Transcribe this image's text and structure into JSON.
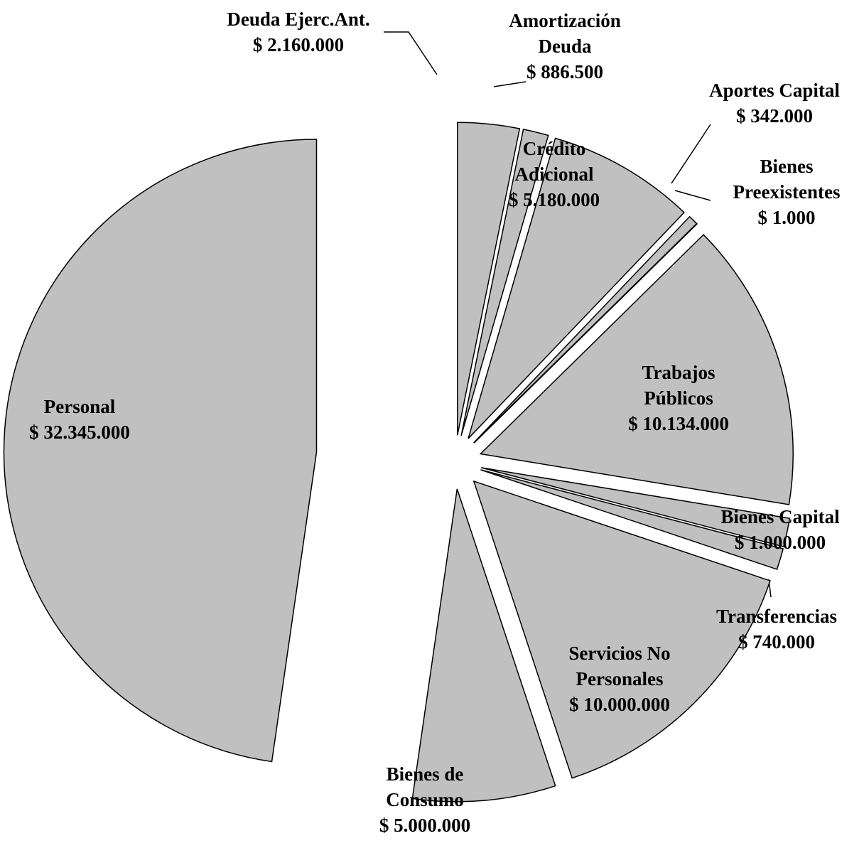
{
  "chart_data": {
    "type": "pie",
    "categories": [
      "Deuda Ejerc.Ant.",
      "Amortización Deuda",
      "Crédito Adicional",
      "Aportes Capital",
      "Bienes Preexistentes",
      "Trabajos Públicos",
      "Bienes Capital",
      "Transferencias",
      "Servicios No Personales",
      "Bienes de Consumo",
      "Personal"
    ],
    "values": [
      2160000,
      886500,
      5180000,
      342000,
      1000,
      10134000,
      1000000,
      740000,
      10000000,
      5000000,
      32345000
    ],
    "value_labels": [
      "$ 2.160.000",
      "$ 886.500",
      "$ 5.180.000",
      "$ 342.000",
      "$ 1.000",
      "$ 10.134.000",
      "$ 1.000.000",
      "$ 740.000",
      "$ 10.000.000",
      "$ 5.000.000",
      "$ 32.345.000"
    ],
    "color": "#c0c0c0"
  }
}
